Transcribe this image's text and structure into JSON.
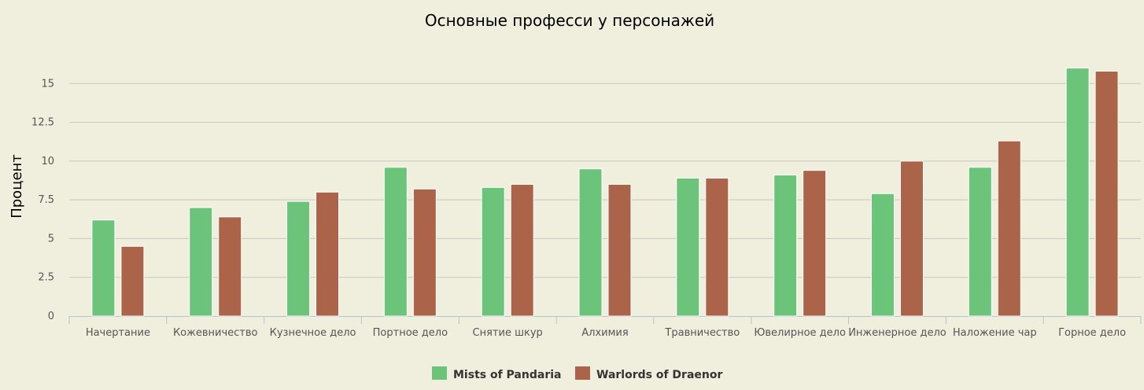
{
  "chart_data": {
    "type": "bar",
    "title": "Основные професси у персонажей",
    "xlabel": "",
    "ylabel": "Процент",
    "ylim": [
      0,
      17.5
    ],
    "yticks": [
      "0",
      "2.5",
      "5",
      "7.5",
      "10",
      "12.5",
      "15"
    ],
    "grid": true,
    "legend_position": "bottom-center",
    "categories": [
      "Начертание",
      "Кожевничество",
      "Кузнечное дело",
      "Портное дело",
      "Снятие шкур",
      "Алхимия",
      "Травничество",
      "Ювелирное дело",
      "Инженерное дело",
      "Наложение чар",
      "Горное дело"
    ],
    "series": [
      {
        "name": "Mists of Pandaria",
        "color": "#6bc47a",
        "values": [
          6.2,
          7.0,
          7.4,
          9.6,
          8.3,
          9.5,
          8.9,
          9.1,
          7.9,
          9.6,
          16.0
        ]
      },
      {
        "name": "Warlords of Draenor",
        "color": "#ab6449",
        "values": [
          4.5,
          6.4,
          8.0,
          8.2,
          8.5,
          8.5,
          8.9,
          9.4,
          10.0,
          11.3,
          15.8
        ]
      }
    ]
  }
}
